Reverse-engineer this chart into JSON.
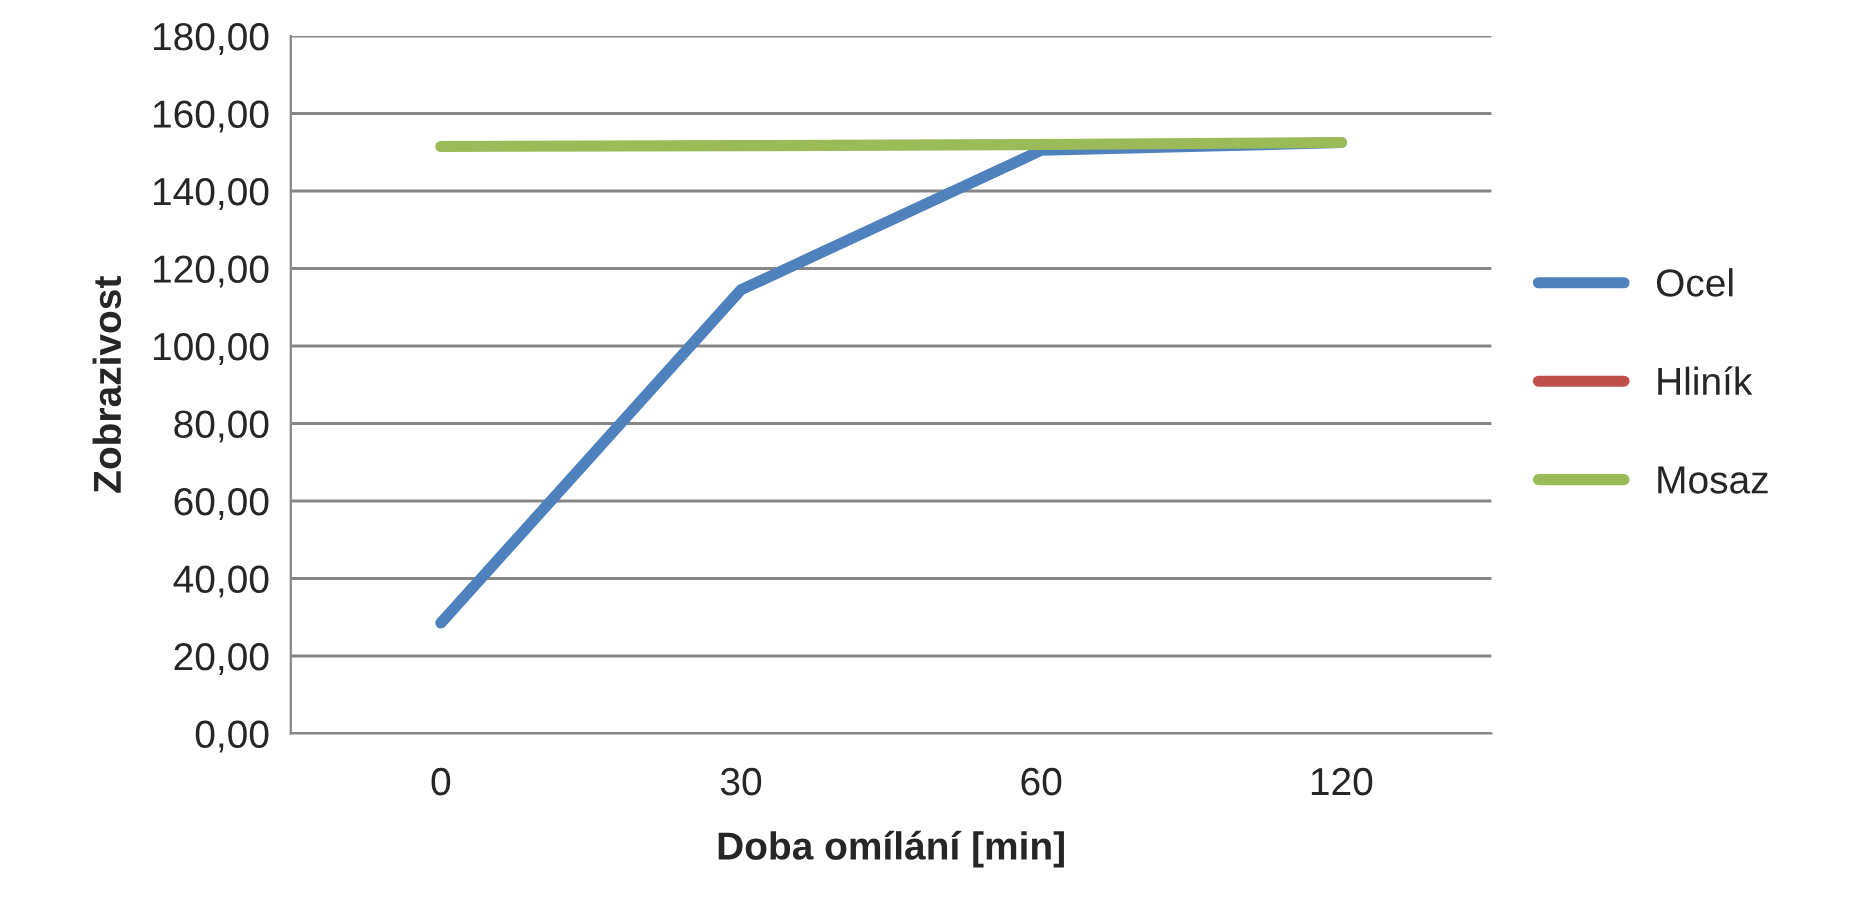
{
  "chart_data": {
    "type": "line",
    "xlabel": "Doba omílání [min]",
    "ylabel": "Zobrazivost",
    "categories": [
      "0",
      "30",
      "60",
      "120"
    ],
    "series": [
      {
        "name": "Ocel",
        "color": "#4f81bd",
        "values": [
          28.5,
          114.5,
          150.5,
          152.5
        ]
      },
      {
        "name": "Hliník",
        "color": "#c0504d",
        "values": [
          null,
          null,
          null,
          null
        ]
      },
      {
        "name": "Mosaz",
        "color": "#9bbb59",
        "values": [
          151.5,
          151.7,
          152.0,
          152.5
        ]
      }
    ],
    "ylim": [
      0,
      180
    ],
    "yticks": [
      {
        "value": 0,
        "label": "0,00"
      },
      {
        "value": 20,
        "label": "20,00"
      },
      {
        "value": 40,
        "label": "40,00"
      },
      {
        "value": 60,
        "label": "60,00"
      },
      {
        "value": 80,
        "label": "80,00"
      },
      {
        "value": 100,
        "label": "100,00"
      },
      {
        "value": 120,
        "label": "120,00"
      },
      {
        "value": 140,
        "label": "140,00"
      },
      {
        "value": 160,
        "label": "160,00"
      },
      {
        "value": 180,
        "label": "180,00"
      }
    ],
    "grid": "y",
    "legend": "right",
    "marker": "none",
    "line_style": "solid"
  }
}
